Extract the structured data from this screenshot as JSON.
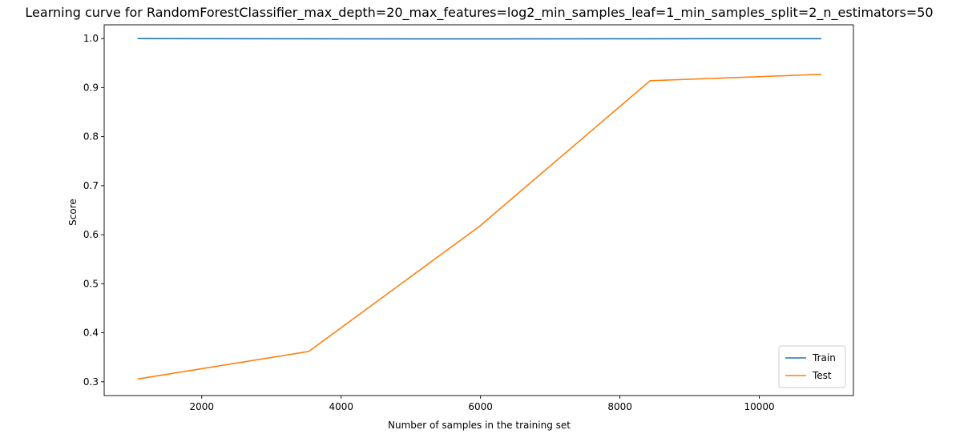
{
  "chart_data": {
    "type": "line",
    "title": "Learning curve for RandomForestClassifier_max_depth=20_max_features=log2_min_samples_leaf=1_min_samples_split=2_n_estimators=50",
    "xlabel": "Number of samples in the training set",
    "ylabel": "Score",
    "xlim": [
      600,
      11350
    ],
    "ylim": [
      0.272,
      1.028
    ],
    "xticks": [
      2000,
      4000,
      6000,
      8000,
      10000
    ],
    "yticks": [
      0.3,
      0.4,
      0.5,
      0.6,
      0.7,
      0.8,
      0.9,
      1.0
    ],
    "xtick_labels": [
      "2000",
      "4000",
      "6000",
      "8000",
      "10000"
    ],
    "ytick_labels": [
      "0.3",
      "0.4",
      "0.5",
      "0.6",
      "0.7",
      "0.8",
      "0.9",
      "1.0"
    ],
    "x": [
      1088,
      3536,
      5984,
      8432,
      10880
    ],
    "series": [
      {
        "name": "Train",
        "color": "#1f77b4",
        "values": [
          1.0,
          0.9995,
          0.9993,
          0.9996,
          0.9998
        ]
      },
      {
        "name": "Test",
        "color": "#ff7f0e",
        "values": [
          0.306,
          0.362,
          0.617,
          0.914,
          0.927
        ]
      }
    ],
    "legend_position": "lower-right",
    "grid": false
  }
}
